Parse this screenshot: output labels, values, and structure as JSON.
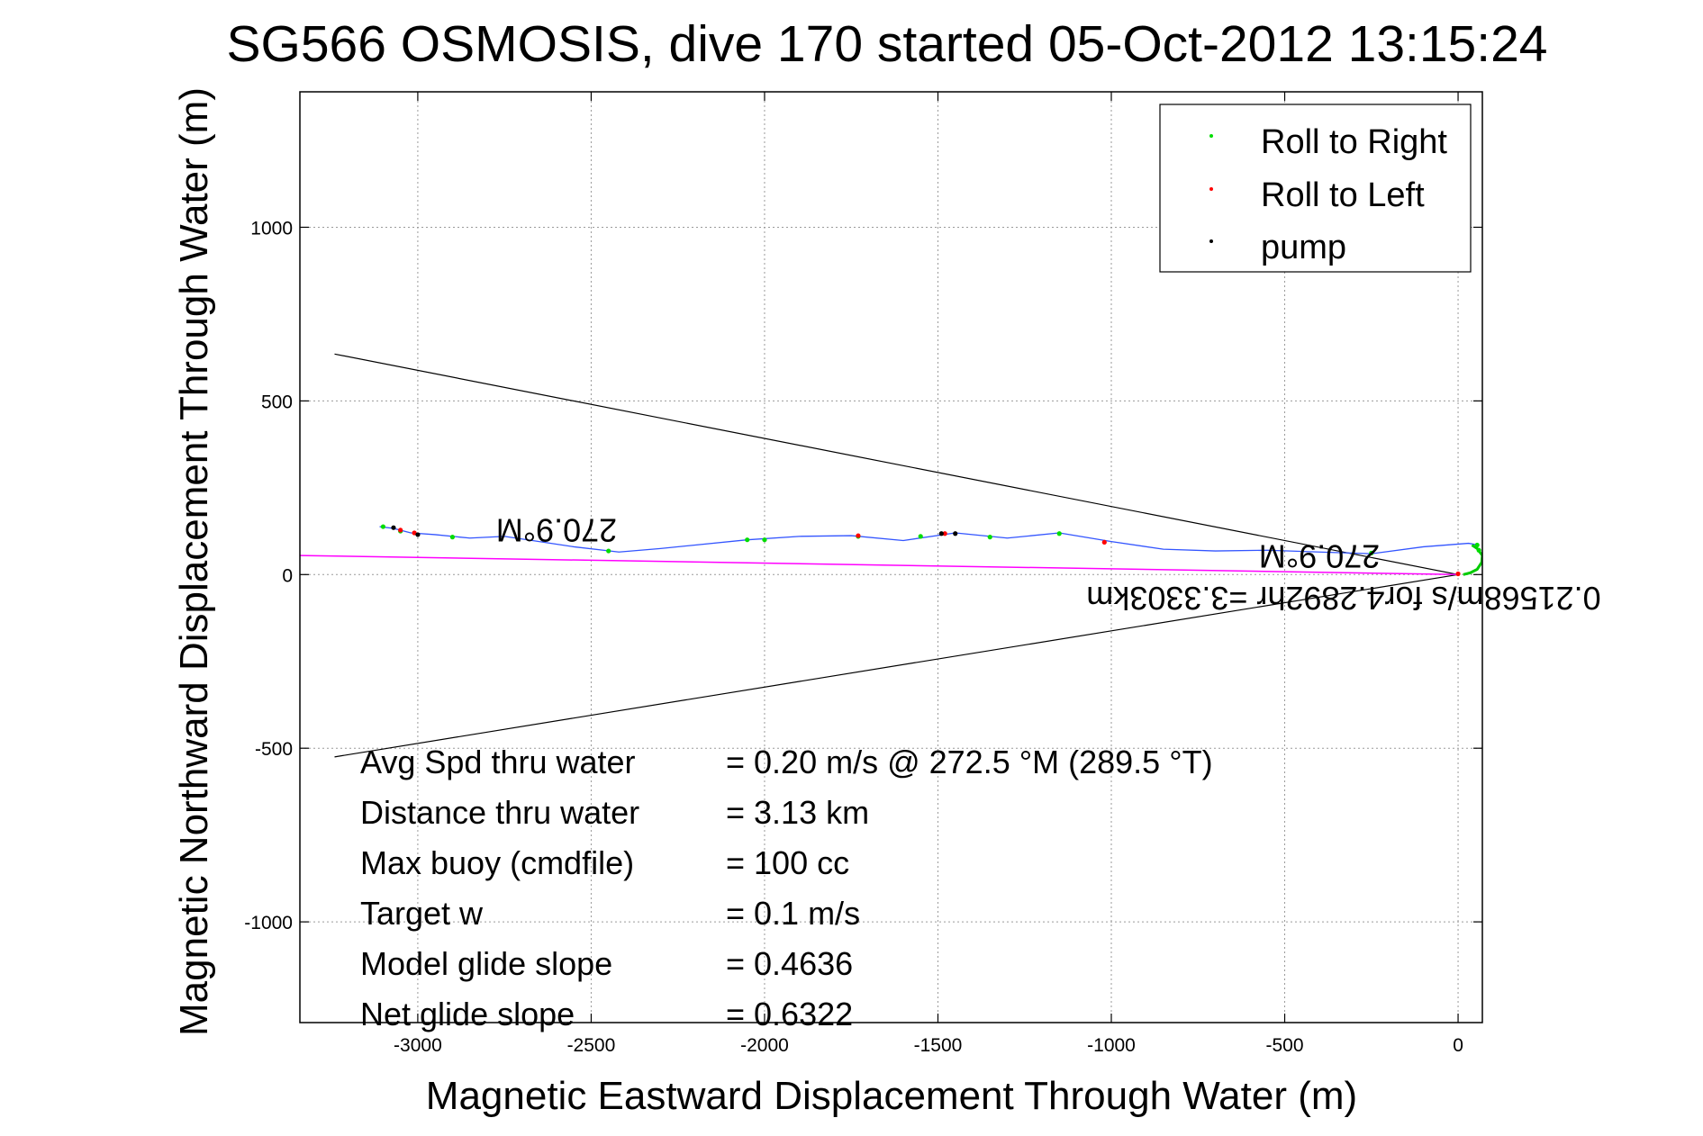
{
  "chart_data": {
    "type": "line",
    "title": "SG566 OSMOSIS, dive 170 started 05-Oct-2012 13:15:24",
    "xlabel": "Magnetic Eastward Displacement Through Water (m)",
    "ylabel": "Magnetic Northward Displacement Through Water (m)",
    "xlim": [
      -3340,
      70
    ],
    "ylim": [
      -1290,
      1390
    ],
    "xticks": [
      -3000,
      -2500,
      -2000,
      -1500,
      -1000,
      -500,
      0
    ],
    "yticks": [
      -1000,
      -500,
      0,
      500,
      1000
    ],
    "grid": true,
    "legend_position": "top-right",
    "legend": [
      {
        "label": "Roll to Right",
        "color": "#00dd00"
      },
      {
        "label": "Roll to Left",
        "color": "#ff0000"
      },
      {
        "label": "pump",
        "color": "#000000"
      }
    ],
    "track": {
      "color": "#3355ff",
      "x": [
        60,
        30,
        -100,
        -250,
        -400,
        -550,
        -700,
        -850,
        -1000,
        -1150,
        -1300,
        -1450,
        -1600,
        -1750,
        -1900,
        -2050,
        -2200,
        -2300,
        -2420,
        -2550,
        -2650,
        -2750,
        -2850,
        -2950,
        -3020,
        -3070,
        -3110
      ],
      "y": [
        85,
        90,
        80,
        60,
        65,
        70,
        68,
        73,
        95,
        120,
        105,
        120,
        98,
        112,
        110,
        100,
        85,
        75,
        65,
        80,
        95,
        110,
        105,
        115,
        120,
        133,
        138
      ]
    },
    "surface_loop": {
      "color": "#00cc00",
      "x": [
        40,
        55,
        70,
        68,
        55,
        35,
        15
      ],
      "y": [
        85,
        75,
        55,
        35,
        15,
        5,
        0
      ]
    },
    "roll_right_points": {
      "x": [
        -250,
        -1150,
        -1350,
        -1550,
        -1730,
        -2000,
        -2050,
        -2450,
        -2900,
        -3050,
        -3100,
        55,
        60
      ],
      "y": [
        62,
        118,
        108,
        110,
        110,
        100,
        100,
        68,
        108,
        125,
        138,
        85,
        70
      ]
    },
    "roll_left_points": {
      "x": [
        -1020,
        -1480,
        -1730,
        -3010,
        -3050,
        0
      ],
      "y": [
        93,
        118,
        112,
        120,
        128,
        2
      ]
    },
    "pump_points": {
      "x": [
        -1450,
        -1490,
        -3000,
        -3070
      ],
      "y": [
        118,
        118,
        115,
        135
      ]
    },
    "current_line": {
      "color": "#ff00ff",
      "x": [
        0,
        -3340
      ],
      "y": [
        0,
        55
      ]
    },
    "cone_lines": {
      "color": "#000000",
      "upper": {
        "x": [
          0,
          -3240
        ],
        "y": [
          0,
          635
        ]
      },
      "lower": {
        "x": [
          0,
          -3240
        ],
        "y": [
          0,
          -525
        ]
      }
    },
    "annotations": [
      {
        "text": "270.9°M",
        "x": -2600,
        "y": 160,
        "rotation": 180
      },
      {
        "text": "270.9°M",
        "x": -400,
        "y": 85,
        "rotation": 180
      },
      {
        "text": "0.21568m/s for4.2892hr =3.3303km",
        "x": -330,
        "y": -35,
        "rotation": 180
      }
    ],
    "stats": [
      {
        "label": "Avg Spd thru water",
        "value": "=  0.20 m/s @ 272.5 °M (289.5 °T)"
      },
      {
        "label": "Distance thru water",
        "value": "=  3.13 km"
      },
      {
        "label": "Max buoy (cmdfile)",
        "value": "= 100 cc"
      },
      {
        "label": "Target w",
        "value": "= 0.1 m/s"
      },
      {
        "label": "Model glide slope",
        "value": "= 0.4636"
      },
      {
        "label": "Net glide slope",
        "value": "= 0.6322"
      }
    ]
  }
}
